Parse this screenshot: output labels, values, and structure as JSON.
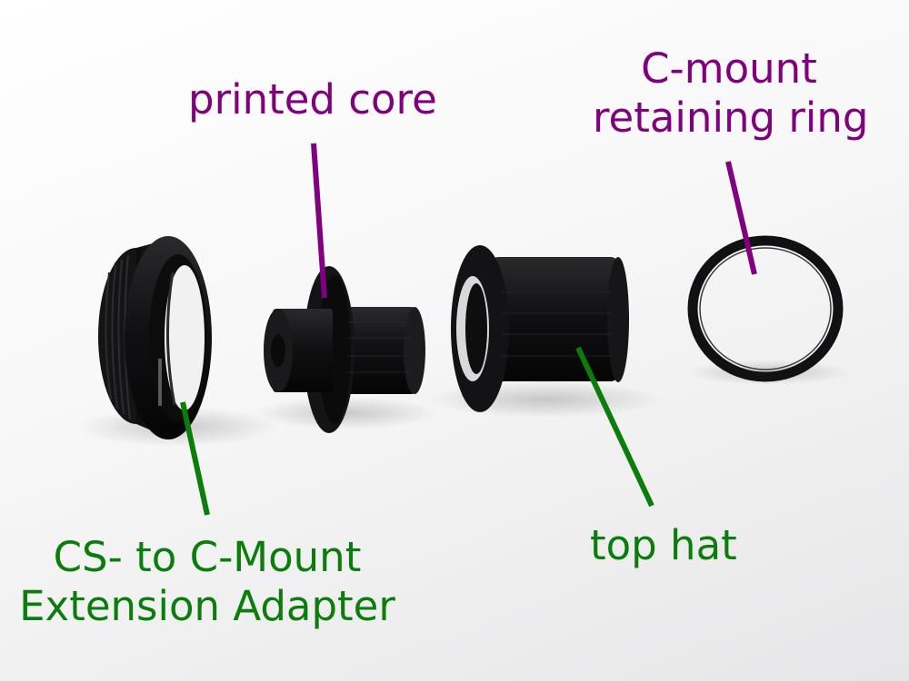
{
  "labels": {
    "printed_core": "printed core",
    "c_mount_ring_line1": "C-mount",
    "c_mount_ring_line2": "retaining ring",
    "top_hat": "top hat",
    "adapter_line1": "CS- to C-Mount",
    "adapter_line2": "Extension Adapter"
  },
  "colors": {
    "purple_callout": "#800080",
    "green_callout": "#0a7d0a",
    "part_color": "#141414",
    "background": "#f4f4f5"
  },
  "parts": [
    "cs-to-c-mount-adapter",
    "printed-core",
    "top-hat",
    "c-mount-retaining-ring"
  ]
}
